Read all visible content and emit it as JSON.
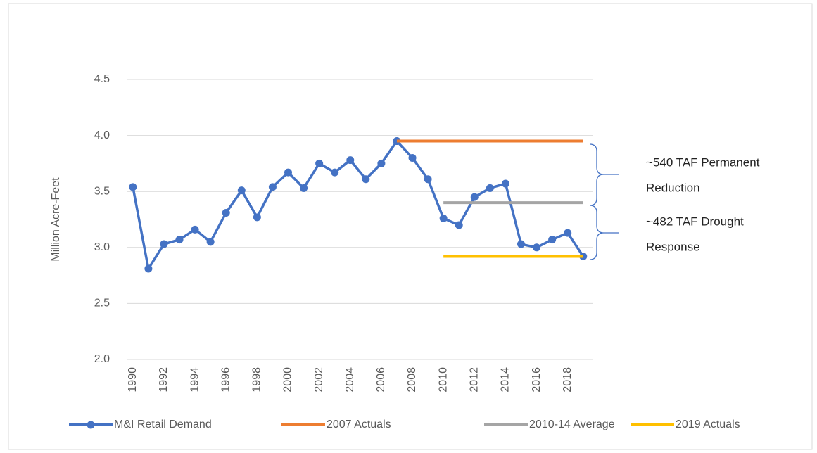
{
  "chart_data": {
    "type": "line",
    "y_label": "Million Acre-Feet",
    "x": [
      1990,
      1991,
      1992,
      1993,
      1994,
      1995,
      1996,
      1997,
      1998,
      1999,
      2000,
      2001,
      2002,
      2003,
      2004,
      2005,
      2006,
      2007,
      2008,
      2009,
      2010,
      2011,
      2012,
      2013,
      2014,
      2015,
      2016,
      2017,
      2018,
      2019
    ],
    "xlim": [
      1989.6,
      2019.6
    ],
    "xticks": [
      1990,
      1992,
      1994,
      1996,
      1998,
      2000,
      2002,
      2004,
      2006,
      2008,
      2010,
      2012,
      2014,
      2016,
      2018
    ],
    "ylim": [
      2.0,
      4.5
    ],
    "yticks": [
      {
        "value": 2,
        "label": "2.0"
      },
      2.5,
      {
        "value": 3,
        "label": "3.0"
      },
      3.5,
      {
        "value": 4,
        "label": "4.0"
      },
      4.5
    ],
    "grid": true,
    "legend": "bottom",
    "series": [
      {
        "name": "M&I Retail Demand",
        "color": "#4472c4",
        "markers": true,
        "values": [
          3.54,
          2.81,
          3.03,
          3.07,
          3.16,
          3.05,
          3.31,
          3.51,
          3.27,
          3.54,
          3.67,
          3.53,
          3.75,
          3.67,
          3.78,
          3.61,
          3.75,
          3.95,
          3.8,
          3.61,
          3.26,
          3.2,
          3.45,
          3.53,
          3.57,
          3.03,
          3.0,
          3.07,
          3.13,
          2.92
        ]
      },
      {
        "name": "2007 Actuals",
        "color": "#ed7d31",
        "markers": false,
        "values": [
          null,
          null,
          null,
          null,
          null,
          null,
          null,
          null,
          null,
          null,
          null,
          null,
          null,
          null,
          null,
          null,
          null,
          3.95,
          3.95,
          3.95,
          3.95,
          3.95,
          3.95,
          3.95,
          3.95,
          3.95,
          3.95,
          3.95,
          3.95,
          3.95
        ]
      },
      {
        "name": "2010-14 Average",
        "color": "#a5a5a5",
        "markers": false,
        "values": [
          null,
          null,
          null,
          null,
          null,
          null,
          null,
          null,
          null,
          null,
          null,
          null,
          null,
          null,
          null,
          null,
          null,
          null,
          null,
          null,
          3.4,
          3.4,
          3.4,
          3.4,
          3.4,
          3.4,
          3.4,
          3.4,
          3.4,
          3.4
        ]
      },
      {
        "name": "2019 Actuals",
        "color": "#ffc000",
        "markers": false,
        "values": [
          null,
          null,
          null,
          null,
          null,
          null,
          null,
          null,
          null,
          null,
          null,
          null,
          null,
          null,
          null,
          null,
          null,
          null,
          null,
          null,
          2.92,
          2.92,
          2.92,
          2.92,
          2.92,
          2.92,
          2.92,
          2.92,
          2.92,
          2.92
        ]
      }
    ],
    "annotations": [
      {
        "lines": [
          "~540 TAF Permanent",
          "Reduction"
        ]
      },
      {
        "lines": [
          "~482 TAF Drought",
          "Response"
        ]
      }
    ]
  }
}
